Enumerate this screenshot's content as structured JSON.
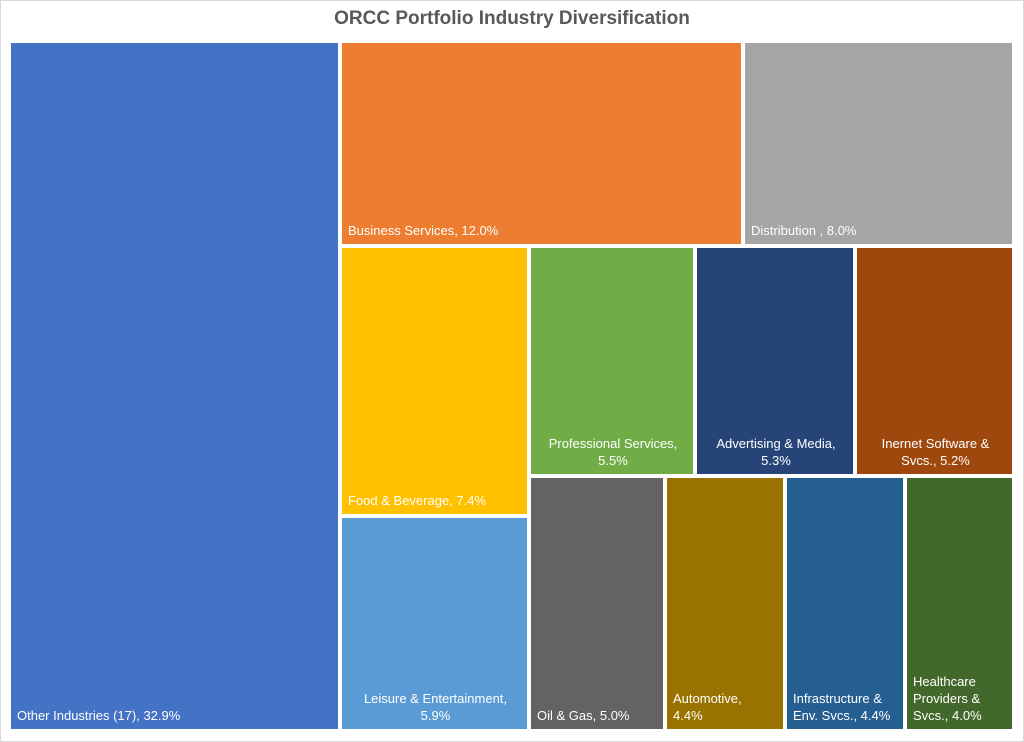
{
  "chart_data": {
    "type": "treemap",
    "title": "ORCC Portfolio Industry Diversification",
    "items": [
      {
        "label": "Other Industries (17), 32.9%",
        "name": "Other Industries (17)",
        "value": 32.9,
        "color": "#4472c4"
      },
      {
        "label": "Business Services, 12.0%",
        "name": "Business Services",
        "value": 12.0,
        "color": "#ed7d31"
      },
      {
        "label": "Distribution , 8.0%",
        "name": "Distribution",
        "value": 8.0,
        "color": "#a5a5a5"
      },
      {
        "label": "Food & Beverage, 7.4%",
        "name": "Food & Beverage",
        "value": 7.4,
        "color": "#ffc000"
      },
      {
        "label": "Professional Services,\n5.5%",
        "name": "Professional Services",
        "value": 5.5,
        "color": "#70ad47"
      },
      {
        "label": "Advertising & Media,\n5.3%",
        "name": "Advertising & Media",
        "value": 5.3,
        "color": "#264478"
      },
      {
        "label": "Inernet Software &\nSvcs., 5.2%",
        "name": "Inernet Software & Svcs.",
        "value": 5.2,
        "color": "#9e480e"
      },
      {
        "label": "Leisure & Entertainment,\n5.9%",
        "name": "Leisure & Entertainment",
        "value": 5.9,
        "color": "#5b9bd5"
      },
      {
        "label": "Oil & Gas, 5.0%",
        "name": "Oil & Gas",
        "value": 5.0,
        "color": "#636363"
      },
      {
        "label": "Automotive,\n4.4%",
        "name": "Automotive",
        "value": 4.4,
        "color": "#997300"
      },
      {
        "label": "Infrastructure &\nEnv. Svcs., 4.4%",
        "name": "Infrastructure & Env. Svcs.",
        "value": 4.4,
        "color": "#255e91"
      },
      {
        "label": "Healthcare\nProviders &\nSvcs., 4.0%",
        "name": "Healthcare Providers & Svcs.",
        "value": 4.0,
        "color": "#43682b"
      }
    ]
  }
}
